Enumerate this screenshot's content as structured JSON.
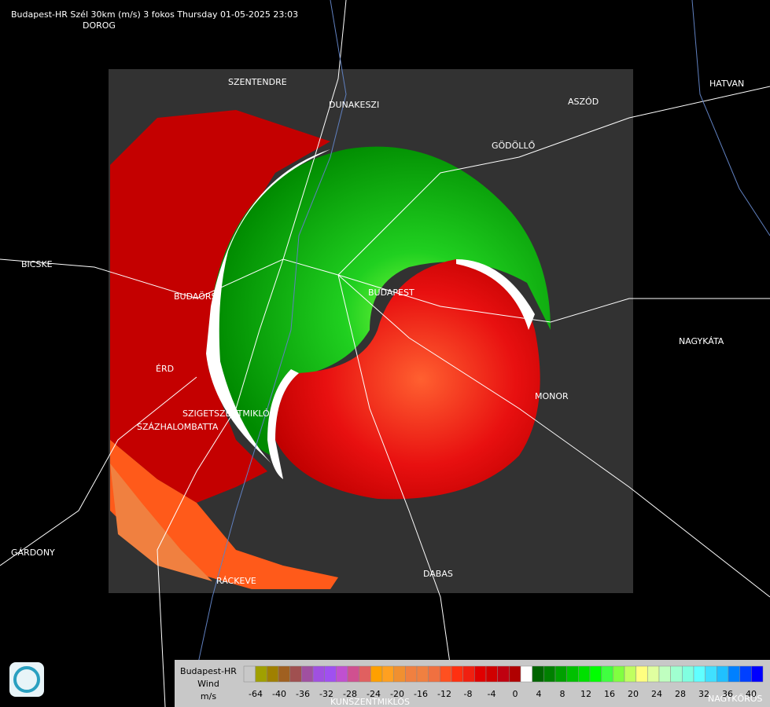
{
  "header": {
    "title": "Budapest-HR Szél 30km (m/s) 3 fokos Thursday 01-05-2025 23:03"
  },
  "places": [
    "DOROG",
    "SZENTENDRE",
    "DUNAKESZI",
    "ASZÓD",
    "HATVAN",
    "GÖDÖLLŐ",
    "BICSKE",
    "BUDAÖRS",
    "BUDAPEST",
    "NAGYKÁTA",
    "ÉRD",
    "MONOR",
    "SZIGETSZENTMIKLÓS",
    "SZÁZHALOMBATTA",
    "GÁRDONY",
    "RÁCKEVE",
    "DABAS",
    "KUNSZENTMIKLÓS",
    "NAGYKŐRÖS"
  ],
  "legend": {
    "title": [
      "Budapest-HR",
      "Wind",
      "m/s"
    ],
    "ticks": [
      -64,
      -40,
      -36,
      -32,
      -28,
      -24,
      -20,
      -16,
      -12,
      -8,
      -4,
      0,
      4,
      8,
      12,
      16,
      20,
      24,
      28,
      32,
      36,
      40
    ],
    "colors": [
      "#c8c8c8",
      "#a0a000",
      "#a08000",
      "#a06020",
      "#a05050",
      "#a050a0",
      "#a050e0",
      "#a050f0",
      "#c050d0",
      "#d05090",
      "#e06060",
      "#ffa000",
      "#ffa020",
      "#f09030",
      "#f08040",
      "#f08040",
      "#f07040",
      "#ff5020",
      "#ff3010",
      "#f02010",
      "#e00000",
      "#d00000",
      "#c00010",
      "#b00000",
      "#ffffff",
      "#006400",
      "#008000",
      "#00a000",
      "#00c000",
      "#00e000",
      "#00ff00",
      "#40ff40",
      "#80ff40",
      "#c0ff60",
      "#ffff80",
      "#e0ffa0",
      "#c0ffc0",
      "#a0ffd0",
      "#80ffe0",
      "#60ffff",
      "#40e0ff",
      "#20c0ff",
      "#0080ff",
      "#0040ff",
      "#0000ff"
    ]
  }
}
